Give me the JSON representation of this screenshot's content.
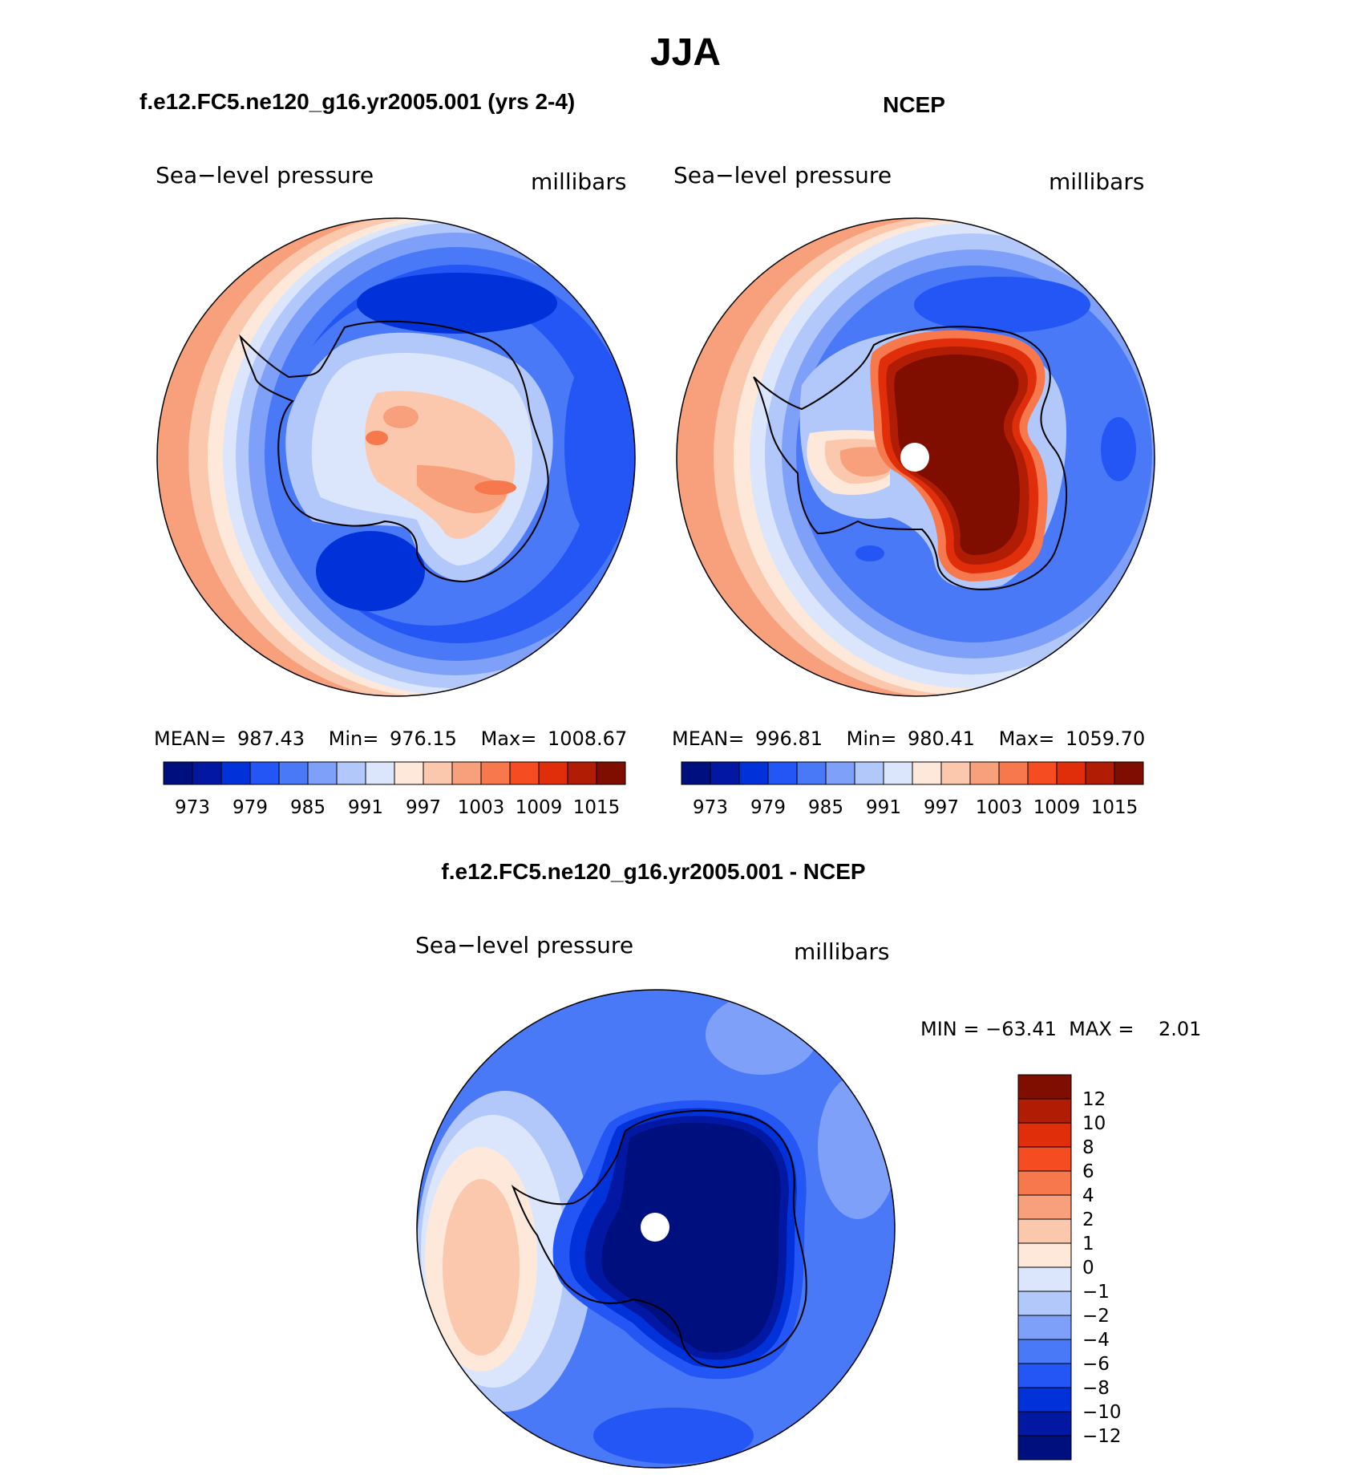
{
  "title": "JJA",
  "palette": [
    "#000f7e",
    "#0218a2",
    "#0131d8",
    "#2356f5",
    "#4a79f7",
    "#7ea0f9",
    "#b2c8fb",
    "#dbe6fd",
    "#fde8d9",
    "#fbc8ad",
    "#f8a07c",
    "#f7784d",
    "#f54d21",
    "#e02e0a",
    "#b11d04",
    "#7f0d00"
  ],
  "top_left": {
    "case_title": "f.e12.FC5.ne120_g16.yr2005.001 (yrs 2-4)",
    "variable": "Sea−level pressure",
    "units": "millibars",
    "stats": {
      "mean_label": "MEAN=",
      "mean": "987.43",
      "min_label": "Min=",
      "min": "976.15",
      "max_label": "Max=",
      "max": "1008.67"
    }
  },
  "top_right": {
    "case_title": "NCEP",
    "variable": "Sea−level pressure",
    "units": "millibars",
    "stats": {
      "mean_label": "MEAN=",
      "mean": "996.81",
      "min_label": "Min=",
      "min": "980.41",
      "max_label": "Max=",
      "max": "1059.70"
    }
  },
  "colorbar_top": {
    "ticks": [
      "973",
      "979",
      "985",
      "991",
      "997",
      "1003",
      "1009",
      "1015"
    ]
  },
  "bottom": {
    "case_title": "f.e12.FC5.ne120_g16.yr2005.001 - NCEP",
    "variable": "Sea−level pressure",
    "units": "millibars",
    "minmax": "MIN = −63.41  MAX =    2.01",
    "colorbar_ticks": [
      "12",
      "10",
      "8",
      "6",
      "4",
      "2",
      "1",
      "0",
      "−1",
      "−2",
      "−4",
      "−6",
      "−8",
      "−10",
      "−12"
    ]
  }
}
